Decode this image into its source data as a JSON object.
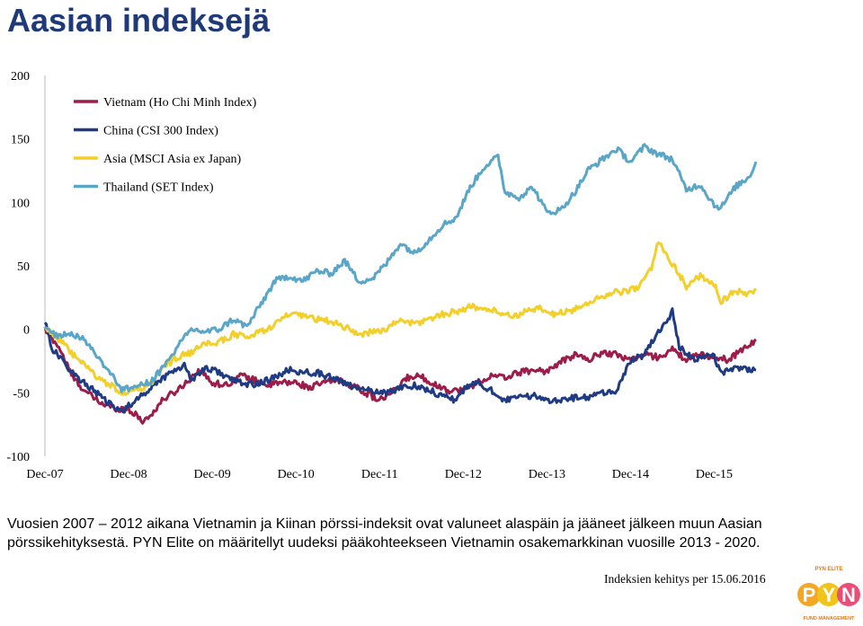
{
  "title": "Aasian indeksejä",
  "caption": "Vuosien 2007 – 2012 aikana Vietnamin ja Kiinan pörssi-indeksit ovat valuneet alaspäin ja jääneet jälkeen muun Aasian pörssikehityksestä. PYN Elite on määritellyt uudeksi pääkohteekseen Vietnamin osakemarkkinan vuosille 2013 - 2020.",
  "source_note": "Indeksien kehitys per 15.06.2016",
  "logo": {
    "top_text": "PYN ELITE",
    "letters": [
      "P",
      "Y",
      "N"
    ],
    "bottom_text": "FUND MANAGEMENT"
  },
  "chart_data": {
    "type": "line",
    "title": "",
    "xlabel": "",
    "ylabel": "",
    "ylim": [
      -100,
      200
    ],
    "yticks": [
      "200",
      "150",
      "100",
      "50",
      "0",
      "-50",
      "-100"
    ],
    "xtick_labels": [
      "Dec-07",
      "Dec-08",
      "Dec-09",
      "Dec-10",
      "Dec-11",
      "Dec-12",
      "Dec-13",
      "Dec-14",
      "Dec-15"
    ],
    "x_start": "2007-12",
    "x_end": "2016-06",
    "grid": false,
    "legend_position": "top-left",
    "series": [
      {
        "name": "Vietnam (Ho Chi Minh Index)",
        "color": "#9c1c4a",
        "points": [
          [
            "2007-12",
            0
          ],
          [
            "2008-02",
            -14
          ],
          [
            "2008-04",
            -38
          ],
          [
            "2008-06",
            -50
          ],
          [
            "2008-08",
            -58
          ],
          [
            "2008-10",
            -62
          ],
          [
            "2008-12",
            -63
          ],
          [
            "2009-02",
            -72
          ],
          [
            "2009-03",
            -69
          ],
          [
            "2009-05",
            -55
          ],
          [
            "2009-07",
            -48
          ],
          [
            "2009-09",
            -38
          ],
          [
            "2009-10",
            -32
          ],
          [
            "2009-12",
            -42
          ],
          [
            "2010-02",
            -44
          ],
          [
            "2010-04",
            -36
          ],
          [
            "2010-06",
            -40
          ],
          [
            "2010-08",
            -44
          ],
          [
            "2010-10",
            -42
          ],
          [
            "2010-12",
            -42
          ],
          [
            "2011-02",
            -46
          ],
          [
            "2011-04",
            -42
          ],
          [
            "2011-06",
            -40
          ],
          [
            "2011-08",
            -44
          ],
          [
            "2011-10",
            -50
          ],
          [
            "2011-12",
            -56
          ],
          [
            "2012-02",
            -49
          ],
          [
            "2012-04",
            -38
          ],
          [
            "2012-06",
            -37
          ],
          [
            "2012-08",
            -44
          ],
          [
            "2012-10",
            -48
          ],
          [
            "2012-12",
            -48
          ],
          [
            "2013-02",
            -42
          ],
          [
            "2013-04",
            -37
          ],
          [
            "2013-06",
            -38
          ],
          [
            "2013-08",
            -34
          ],
          [
            "2013-10",
            -32
          ],
          [
            "2013-12",
            -33
          ],
          [
            "2014-02",
            -26
          ],
          [
            "2014-04",
            -20
          ],
          [
            "2014-06",
            -24
          ],
          [
            "2014-08",
            -18
          ],
          [
            "2014-10",
            -20
          ],
          [
            "2014-12",
            -24
          ],
          [
            "2015-02",
            -20
          ],
          [
            "2015-04",
            -22
          ],
          [
            "2015-06",
            -16
          ],
          [
            "2015-08",
            -24
          ],
          [
            "2015-10",
            -20
          ],
          [
            "2015-12",
            -22
          ],
          [
            "2016-02",
            -24
          ],
          [
            "2016-04",
            -16
          ],
          [
            "2016-06",
            -8
          ]
        ]
      },
      {
        "name": "China (CSI 300 Index)",
        "color": "#1f3b84",
        "points": [
          [
            "2007-12",
            7
          ],
          [
            "2008-01",
            -15
          ],
          [
            "2008-03",
            -28
          ],
          [
            "2008-05",
            -40
          ],
          [
            "2008-07",
            -48
          ],
          [
            "2008-09",
            -58
          ],
          [
            "2008-11",
            -65
          ],
          [
            "2008-12",
            -60
          ],
          [
            "2009-02",
            -52
          ],
          [
            "2009-04",
            -42
          ],
          [
            "2009-06",
            -34
          ],
          [
            "2009-08",
            -28
          ],
          [
            "2009-09",
            -40
          ],
          [
            "2009-11",
            -30
          ],
          [
            "2010-01",
            -34
          ],
          [
            "2010-03",
            -40
          ],
          [
            "2010-05",
            -44
          ],
          [
            "2010-07",
            -42
          ],
          [
            "2010-09",
            -38
          ],
          [
            "2010-11",
            -32
          ],
          [
            "2011-01",
            -34
          ],
          [
            "2011-03",
            -34
          ],
          [
            "2011-05",
            -38
          ],
          [
            "2011-07",
            -42
          ],
          [
            "2011-09",
            -48
          ],
          [
            "2011-11",
            -48
          ],
          [
            "2012-01",
            -50
          ],
          [
            "2012-03",
            -46
          ],
          [
            "2012-05",
            -44
          ],
          [
            "2012-07",
            -48
          ],
          [
            "2012-09",
            -52
          ],
          [
            "2012-11",
            -56
          ],
          [
            "2012-12",
            -48
          ],
          [
            "2013-02",
            -42
          ],
          [
            "2013-04",
            -48
          ],
          [
            "2013-06",
            -56
          ],
          [
            "2013-08",
            -54
          ],
          [
            "2013-10",
            -52
          ],
          [
            "2013-12",
            -56
          ],
          [
            "2014-02",
            -55
          ],
          [
            "2014-04",
            -54
          ],
          [
            "2014-06",
            -54
          ],
          [
            "2014-08",
            -50
          ],
          [
            "2014-10",
            -48
          ],
          [
            "2014-12",
            -25
          ],
          [
            "2015-02",
            -20
          ],
          [
            "2015-03",
            -10
          ],
          [
            "2015-05",
            5
          ],
          [
            "2015-06",
            14
          ],
          [
            "2015-07",
            -14
          ],
          [
            "2015-09",
            -24
          ],
          [
            "2015-11",
            -20
          ],
          [
            "2015-12",
            -22
          ],
          [
            "2016-01",
            -34
          ],
          [
            "2016-03",
            -30
          ],
          [
            "2016-06",
            -32
          ]
        ]
      },
      {
        "name": "Asia (MSCI Asia ex Japan)",
        "color": "#f2cf2a",
        "points": [
          [
            "2007-12",
            2
          ],
          [
            "2008-02",
            -8
          ],
          [
            "2008-04",
            -20
          ],
          [
            "2008-06",
            -30
          ],
          [
            "2008-08",
            -40
          ],
          [
            "2008-10",
            -46
          ],
          [
            "2008-11",
            -50
          ],
          [
            "2009-01",
            -48
          ],
          [
            "2009-03",
            -44
          ],
          [
            "2009-05",
            -30
          ],
          [
            "2009-07",
            -22
          ],
          [
            "2009-09",
            -18
          ],
          [
            "2009-11",
            -12
          ],
          [
            "2010-01",
            -10
          ],
          [
            "2010-03",
            -4
          ],
          [
            "2010-05",
            -6
          ],
          [
            "2010-07",
            -2
          ],
          [
            "2010-09",
            4
          ],
          [
            "2010-11",
            12
          ],
          [
            "2011-01",
            10
          ],
          [
            "2011-03",
            8
          ],
          [
            "2011-05",
            6
          ],
          [
            "2011-07",
            2
          ],
          [
            "2011-09",
            -4
          ],
          [
            "2011-11",
            -2
          ],
          [
            "2012-01",
            0
          ],
          [
            "2012-03",
            8
          ],
          [
            "2012-05",
            4
          ],
          [
            "2012-07",
            8
          ],
          [
            "2012-09",
            12
          ],
          [
            "2012-11",
            14
          ],
          [
            "2013-01",
            18
          ],
          [
            "2013-03",
            16
          ],
          [
            "2013-05",
            14
          ],
          [
            "2013-07",
            10
          ],
          [
            "2013-09",
            14
          ],
          [
            "2013-11",
            16
          ],
          [
            "2014-01",
            12
          ],
          [
            "2014-03",
            14
          ],
          [
            "2014-05",
            18
          ],
          [
            "2014-07",
            24
          ],
          [
            "2014-09",
            28
          ],
          [
            "2014-11",
            30
          ],
          [
            "2015-01",
            32
          ],
          [
            "2015-03",
            48
          ],
          [
            "2015-04",
            70
          ],
          [
            "2015-05",
            60
          ],
          [
            "2015-06",
            52
          ],
          [
            "2015-08",
            34
          ],
          [
            "2015-10",
            42
          ],
          [
            "2015-12",
            36
          ],
          [
            "2016-01",
            22
          ],
          [
            "2016-03",
            30
          ],
          [
            "2016-05",
            28
          ],
          [
            "2016-06",
            32
          ]
        ]
      },
      {
        "name": "Thailand (SET Index)",
        "color": "#5aa6c8",
        "points": [
          [
            "2007-12",
            0
          ],
          [
            "2008-02",
            -5
          ],
          [
            "2008-04",
            -3
          ],
          [
            "2008-06",
            -10
          ],
          [
            "2008-08",
            -25
          ],
          [
            "2008-10",
            -38
          ],
          [
            "2008-11",
            -48
          ],
          [
            "2009-01",
            -45
          ],
          [
            "2009-03",
            -42
          ],
          [
            "2009-05",
            -30
          ],
          [
            "2009-07",
            -14
          ],
          [
            "2009-09",
            0
          ],
          [
            "2009-11",
            -2
          ],
          [
            "2010-01",
            0
          ],
          [
            "2010-03",
            8
          ],
          [
            "2010-05",
            2
          ],
          [
            "2010-07",
            20
          ],
          [
            "2010-09",
            38
          ],
          [
            "2010-11",
            42
          ],
          [
            "2011-01",
            38
          ],
          [
            "2011-03",
            46
          ],
          [
            "2011-05",
            44
          ],
          [
            "2011-07",
            54
          ],
          [
            "2011-09",
            38
          ],
          [
            "2011-11",
            40
          ],
          [
            "2012-01",
            52
          ],
          [
            "2012-03",
            68
          ],
          [
            "2012-05",
            60
          ],
          [
            "2012-07",
            70
          ],
          [
            "2012-09",
            82
          ],
          [
            "2012-11",
            88
          ],
          [
            "2013-01",
            112
          ],
          [
            "2013-03",
            128
          ],
          [
            "2013-05",
            136
          ],
          [
            "2013-06",
            108
          ],
          [
            "2013-08",
            104
          ],
          [
            "2013-10",
            112
          ],
          [
            "2013-12",
            92
          ],
          [
            "2014-02",
            94
          ],
          [
            "2014-04",
            108
          ],
          [
            "2014-06",
            126
          ],
          [
            "2014-08",
            134
          ],
          [
            "2014-10",
            142
          ],
          [
            "2014-12",
            132
          ],
          [
            "2015-02",
            144
          ],
          [
            "2015-04",
            138
          ],
          [
            "2015-06",
            134
          ],
          [
            "2015-08",
            110
          ],
          [
            "2015-10",
            114
          ],
          [
            "2015-12",
            98
          ],
          [
            "2016-01",
            96
          ],
          [
            "2016-03",
            112
          ],
          [
            "2016-05",
            120
          ],
          [
            "2016-06",
            132
          ]
        ]
      }
    ]
  }
}
